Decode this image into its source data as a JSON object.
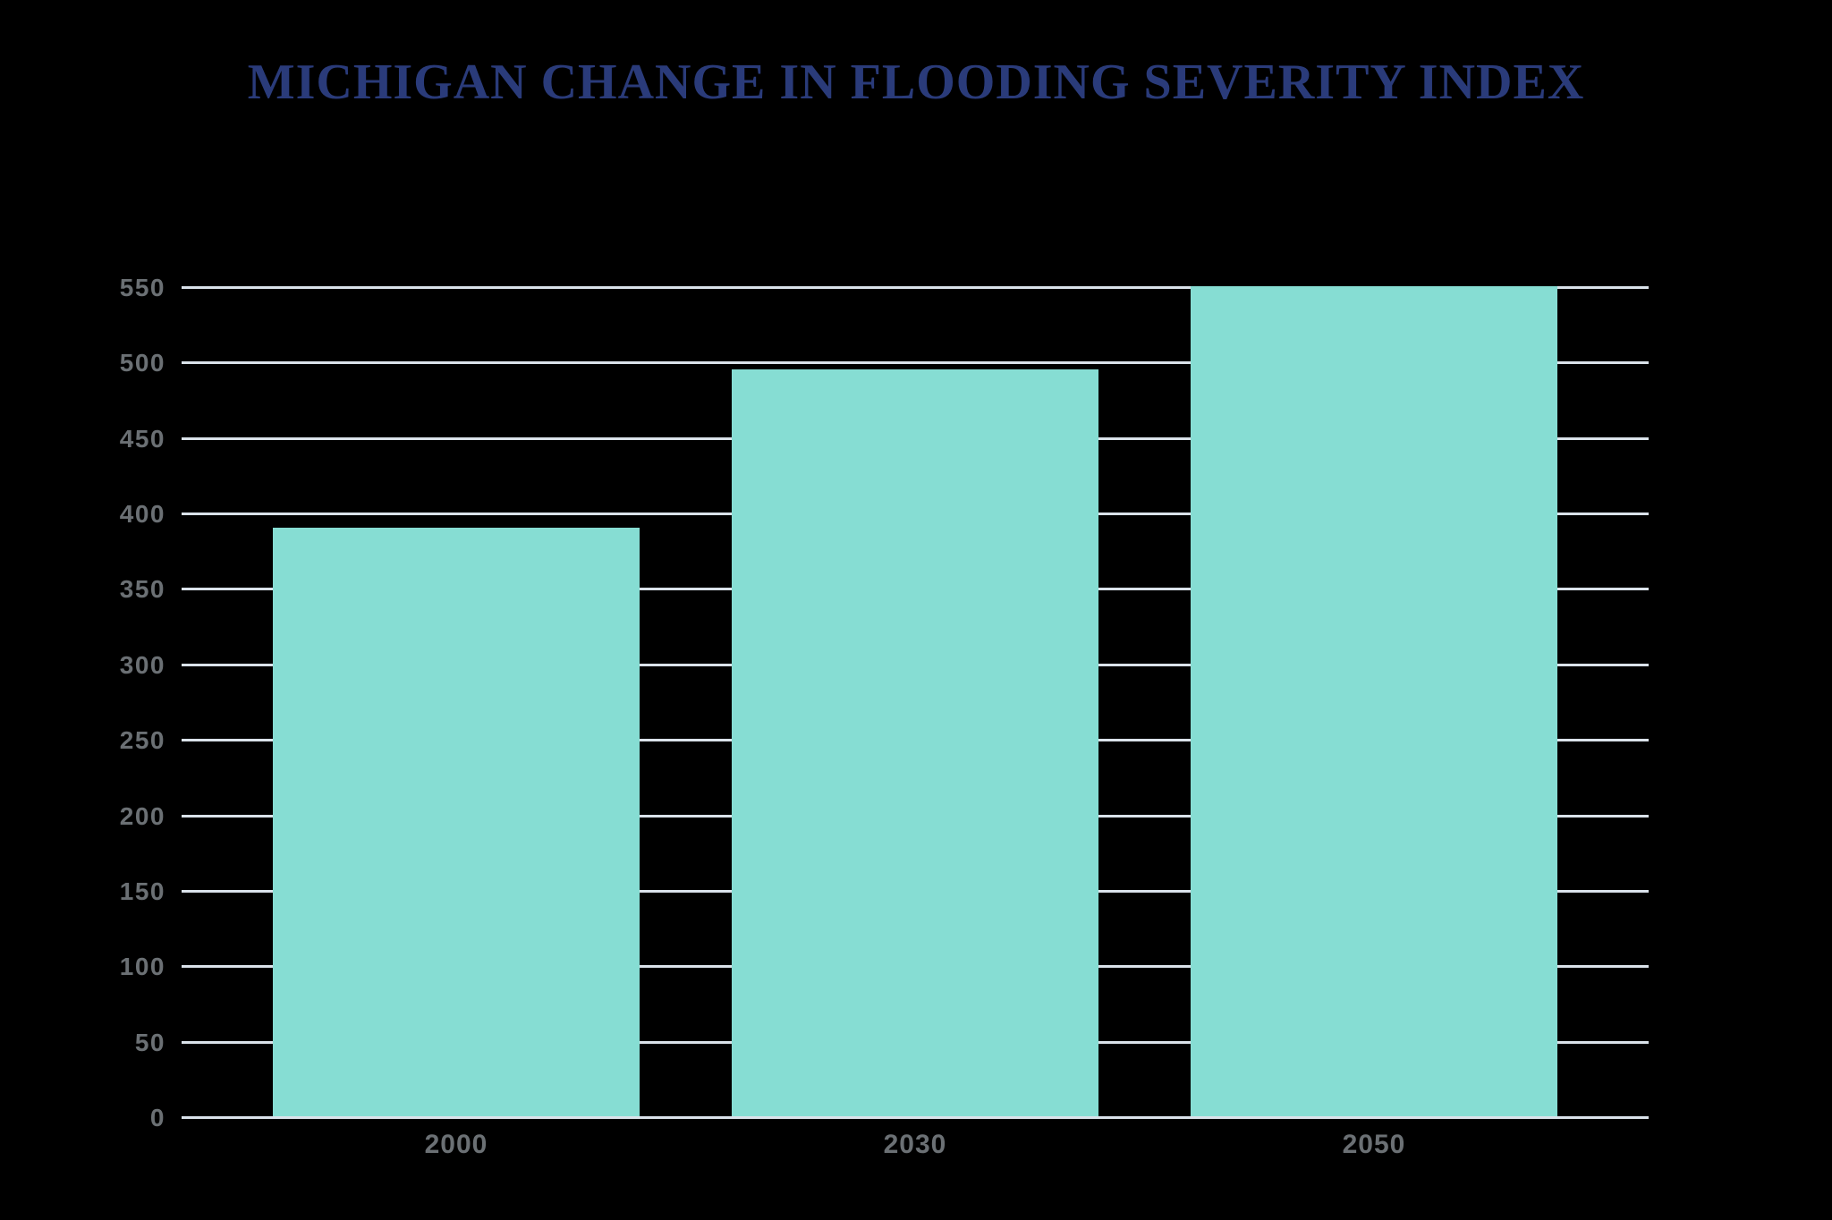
{
  "title": "MICHIGAN CHANGE IN FLOODING SEVERITY INDEX",
  "colors": {
    "background": "#000000",
    "title": "#2A3B7A",
    "bar": "#86DDD3",
    "gridline": "#DAE2EA",
    "tick_label": "#6B7074"
  },
  "chart_data": {
    "type": "bar",
    "title": "MICHIGAN CHANGE IN FLOODING SEVERITY INDEX",
    "categories": [
      "2000",
      "2030",
      "2050"
    ],
    "values": [
      390,
      495,
      550
    ],
    "xlabel": "",
    "ylabel": "",
    "ylim": [
      0,
      550
    ],
    "ytick_step": 50,
    "yticks": [
      "0",
      "50",
      "100",
      "150",
      "200",
      "250",
      "300",
      "350",
      "400",
      "450",
      "500",
      "550"
    ],
    "grid": true,
    "legend": false
  }
}
